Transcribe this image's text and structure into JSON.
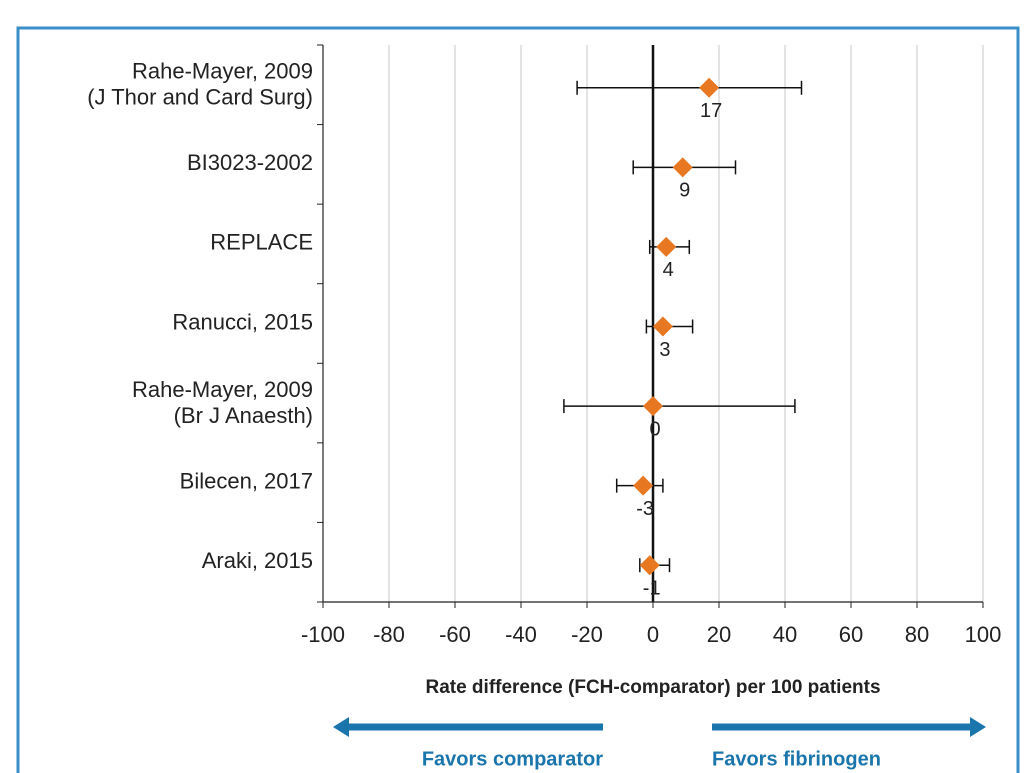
{
  "chart_data": {
    "type": "forest",
    "categories": [
      [
        "Rahe-Mayer, 2009",
        "(J Thor and Card Surg)"
      ],
      "BI3023-2002",
      "REPLACE",
      "Ranucci, 2015",
      [
        "Rahe-Mayer, 2009",
        "(Br J Anaesth)"
      ],
      "Bilecen, 2017",
      "Araki, 2015"
    ],
    "values": [
      17,
      9,
      4,
      3,
      0,
      -3,
      -1
    ],
    "lower": [
      -23,
      -6,
      -1,
      -2,
      -27,
      -11,
      -4
    ],
    "upper": [
      45,
      25,
      11,
      12,
      43,
      3,
      5
    ],
    "color": "#e87722",
    "xlim": [
      -100,
      100
    ],
    "xticks": [
      -100,
      -80,
      -60,
      -40,
      -20,
      0,
      20,
      40,
      60,
      80,
      100
    ],
    "grid": true,
    "x_label": "Rate difference (FCH-comparator) per 100 patients",
    "left_note": "Favors comparator",
    "right_note": "Favors fibrinogen",
    "note_color": "#1a75ad"
  }
}
